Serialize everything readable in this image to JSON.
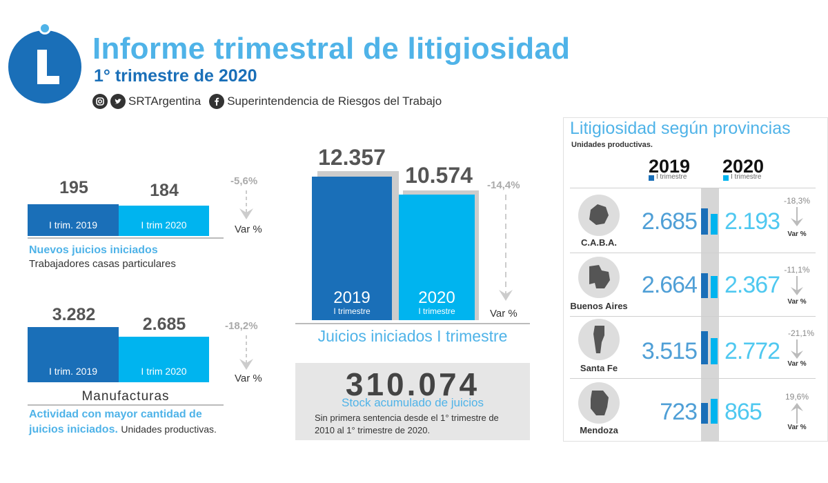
{
  "header": {
    "title": "Informe trimestral de litigiosidad",
    "subtitle": "1° trimestre de 2020",
    "social_handle": "SRTArgentina",
    "social_org": "Superintendencia de Riesgos del Trabajo"
  },
  "casas_particulares": {
    "value_2019": "195",
    "value_2020": "184",
    "label_2019": "I trim. 2019",
    "label_2020": "I trim 2020",
    "variation": "-5,6%",
    "var_label": "Var %",
    "caption_title": "Nuevos juicios iniciados",
    "caption_sub": "Trabajadores casas particulares"
  },
  "manufacturas": {
    "value_2019": "3.282",
    "value_2020": "2.685",
    "label_2019": "I trim. 2019",
    "label_2020": "I trim 2020",
    "variation": "-18,2%",
    "var_label": "Var %",
    "sector": "Manufacturas",
    "caption_line1": "Actividad con mayor cantidad de",
    "caption_line2_blue": "juicios iniciados.",
    "caption_line2_dark": "Unidades productivas."
  },
  "juicios": {
    "value_2019": "12.357",
    "value_2020": "10.574",
    "year_2019": "2019",
    "year_2020": "2020",
    "sub": "I trimestre",
    "variation": "-14,4%",
    "var_label": "Var %",
    "caption": "Juicios iniciados I trimestre"
  },
  "stock": {
    "value": "310.074",
    "title": "Stock acumulado de juicios",
    "line1": "Sin primera sentencia desde el 1° trimestre de",
    "line2": "2010 al 1° trimestre de 2020."
  },
  "provincias": {
    "title": "Litigiosidad según provincias",
    "subtitle": "Unidades productivas.",
    "year_2019": "2019",
    "year_2020": "2020",
    "sub": "I trimestre",
    "var_label": "Var %",
    "rows": [
      {
        "name": "C.A.B.A.",
        "v2019": "2.685",
        "v2020": "2.193",
        "variation": "-18,3%",
        "direction": "down"
      },
      {
        "name": "Buenos Aires",
        "v2019": "2.664",
        "v2020": "2.367",
        "variation": "-11,1%",
        "direction": "down"
      },
      {
        "name": "Santa Fe",
        "v2019": "3.515",
        "v2020": "2.772",
        "variation": "-21,1%",
        "direction": "down"
      },
      {
        "name": "Mendoza",
        "v2019": "723",
        "v2020": "865",
        "variation": "19,6%",
        "direction": "up"
      }
    ]
  },
  "colors": {
    "dark_blue": "#1a6fb8",
    "light_blue": "#00b4ef",
    "title_blue": "#4fb3e8"
  },
  "icons": [
    "logo-l-icon",
    "instagram-icon",
    "twitter-icon",
    "facebook-icon",
    "arrow-down-icon",
    "arrow-up-icon",
    "map-caba-icon",
    "map-buenos-aires-icon",
    "map-santa-fe-icon",
    "map-mendoza-icon"
  ]
}
